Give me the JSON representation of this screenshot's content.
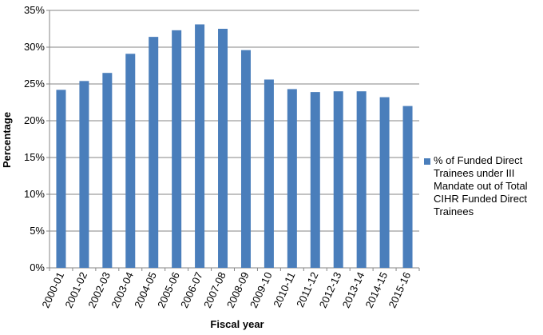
{
  "chart_data": {
    "type": "bar",
    "x_label": "Fiscal year",
    "y_label": "Percentage",
    "categories": [
      "2000-01",
      "2001-02",
      "2002-03",
      "2003-04",
      "2004-05",
      "2005-06",
      "2006-07",
      "2007-08",
      "2008-09",
      "2009-10",
      "2010-11",
      "2011-12",
      "2012-13",
      "2013-14",
      "2014-15",
      "2015-16"
    ],
    "series": [
      {
        "name": "% of Funded Direct Trainees under III Mandate out of Total CIHR Funded Direct Trainees",
        "color": "#4a7ebb",
        "values": [
          24.2,
          25.4,
          26.5,
          29.1,
          31.4,
          32.3,
          33.1,
          32.5,
          29.6,
          25.6,
          24.3,
          23.9,
          24.0,
          24.0,
          23.2,
          22.0
        ]
      }
    ],
    "ylim": [
      0,
      35
    ],
    "yticks": [
      {
        "value": 0,
        "label": "0%"
      },
      {
        "value": 5,
        "label": "5%"
      },
      {
        "value": 10,
        "label": "10%"
      },
      {
        "value": 15,
        "label": "15%"
      },
      {
        "value": 20,
        "label": "20%"
      },
      {
        "value": 25,
        "label": "25%"
      },
      {
        "value": 30,
        "label": "30%"
      },
      {
        "value": 35,
        "label": "35%"
      }
    ],
    "grid": true,
    "legend": "right"
  }
}
